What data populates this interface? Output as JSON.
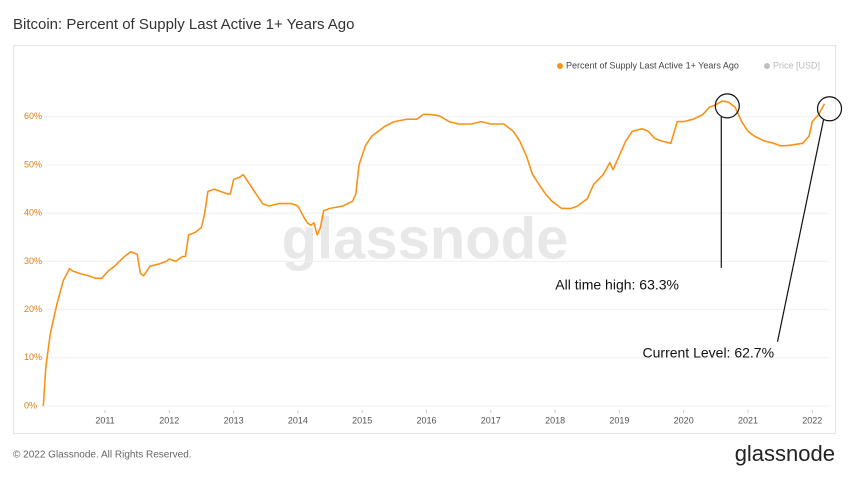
{
  "chart_data": {
    "type": "line",
    "title": "Bitcoin: Percent of Supply Last Active 1+ Years Ago",
    "x": [
      2010.04,
      2010.08,
      2010.15,
      2010.25,
      2010.35,
      2010.45,
      2010.5,
      2010.6,
      2010.75,
      2010.85,
      2010.95,
      2011.05,
      2011.15,
      2011.3,
      2011.4,
      2011.5,
      2011.55,
      2011.6,
      2011.7,
      2011.85,
      2011.95,
      2012.0,
      2012.1,
      2012.2,
      2012.25,
      2012.3,
      2012.4,
      2012.5,
      2012.55,
      2012.6,
      2012.7,
      2012.8,
      2012.9,
      2012.95,
      2013.0,
      2013.1,
      2013.15,
      2013.25,
      2013.35,
      2013.45,
      2013.55,
      2013.7,
      2013.9,
      2014.0,
      2014.1,
      2014.15,
      2014.2,
      2014.25,
      2014.3,
      2014.35,
      2014.4,
      2014.5,
      2014.7,
      2014.85,
      2014.9,
      2014.95,
      2015.05,
      2015.15,
      2015.25,
      2015.35,
      2015.5,
      2015.7,
      2015.85,
      2015.95,
      2016.05,
      2016.2,
      2016.35,
      2016.5,
      2016.7,
      2016.85,
      2017.0,
      2017.2,
      2017.35,
      2017.45,
      2017.55,
      2017.65,
      2017.75,
      2017.85,
      2017.95,
      2018.1,
      2018.25,
      2018.35,
      2018.5,
      2018.6,
      2018.75,
      2018.85,
      2018.9,
      2019.0,
      2019.1,
      2019.2,
      2019.35,
      2019.45,
      2019.55,
      2019.65,
      2019.8,
      2019.9,
      2020.0,
      2020.15,
      2020.3,
      2020.4,
      2020.5,
      2020.6,
      2020.7,
      2020.8,
      2020.9,
      2021.0,
      2021.1,
      2021.25,
      2021.4,
      2021.5,
      2021.6,
      2021.7,
      2021.85,
      2021.95,
      2022.0,
      2022.1,
      2022.19
    ],
    "series": [
      {
        "name": "Percent of Supply Last Active 1+ Years Ago",
        "color": "#f7931a",
        "values": [
          0,
          8,
          15,
          21,
          26,
          28.5,
          28,
          27.5,
          27,
          26.5,
          26.5,
          28,
          29,
          31,
          32,
          31.5,
          27.5,
          27,
          29,
          29.5,
          30,
          30.5,
          30,
          31,
          31,
          35.5,
          36,
          37,
          40,
          44.5,
          45,
          44.5,
          44,
          44,
          47,
          47.5,
          48,
          46,
          44,
          42,
          41.5,
          42,
          42,
          41.5,
          39,
          38,
          37.5,
          38,
          35.5,
          37,
          40.5,
          41,
          41.5,
          42.5,
          44,
          50,
          54,
          56,
          57,
          58,
          59,
          59.5,
          59.5,
          60.5,
          60.5,
          60.2,
          59,
          58.5,
          58.5,
          59,
          58.5,
          58.5,
          57,
          55,
          52,
          48,
          46,
          44,
          42.5,
          41,
          41,
          41.5,
          43,
          46,
          48,
          50.5,
          49,
          52,
          55,
          57,
          57.5,
          57,
          55.5,
          55,
          54.5,
          59,
          59,
          59.5,
          60.5,
          62,
          62.5,
          63.3,
          63,
          62,
          59,
          57,
          56,
          55,
          54.5,
          54,
          54,
          54.2,
          54.5,
          56,
          59,
          60.5,
          62.7
        ]
      }
    ],
    "legend_inactive": {
      "name": "Price [USD]",
      "color": "#8a8a8a"
    },
    "xlim": [
      2010,
      2022.3
    ],
    "xticks": [
      2011,
      2012,
      2013,
      2014,
      2015,
      2016,
      2017,
      2018,
      2019,
      2020,
      2021,
      2022
    ],
    "ylim": [
      0,
      70
    ],
    "yticks": [
      {
        "value": 0,
        "label": "0%"
      },
      {
        "value": 10,
        "label": "10%"
      },
      {
        "value": 20,
        "label": "20%"
      },
      {
        "value": 30,
        "label": "30%"
      },
      {
        "value": 40,
        "label": "40%"
      },
      {
        "value": 50,
        "label": "50%"
      },
      {
        "value": 60,
        "label": "60%"
      }
    ],
    "grid": true,
    "annotations": [
      {
        "text": "All time high: 63.3%",
        "x": 2020.6,
        "y": 63.3
      },
      {
        "text": "Current Level: 62.7%",
        "x": 2022.19,
        "y": 62.7
      }
    ]
  },
  "footer": {
    "copyright": "© 2022 Glassnode. All Rights Reserved.",
    "brand": "glassnode"
  }
}
